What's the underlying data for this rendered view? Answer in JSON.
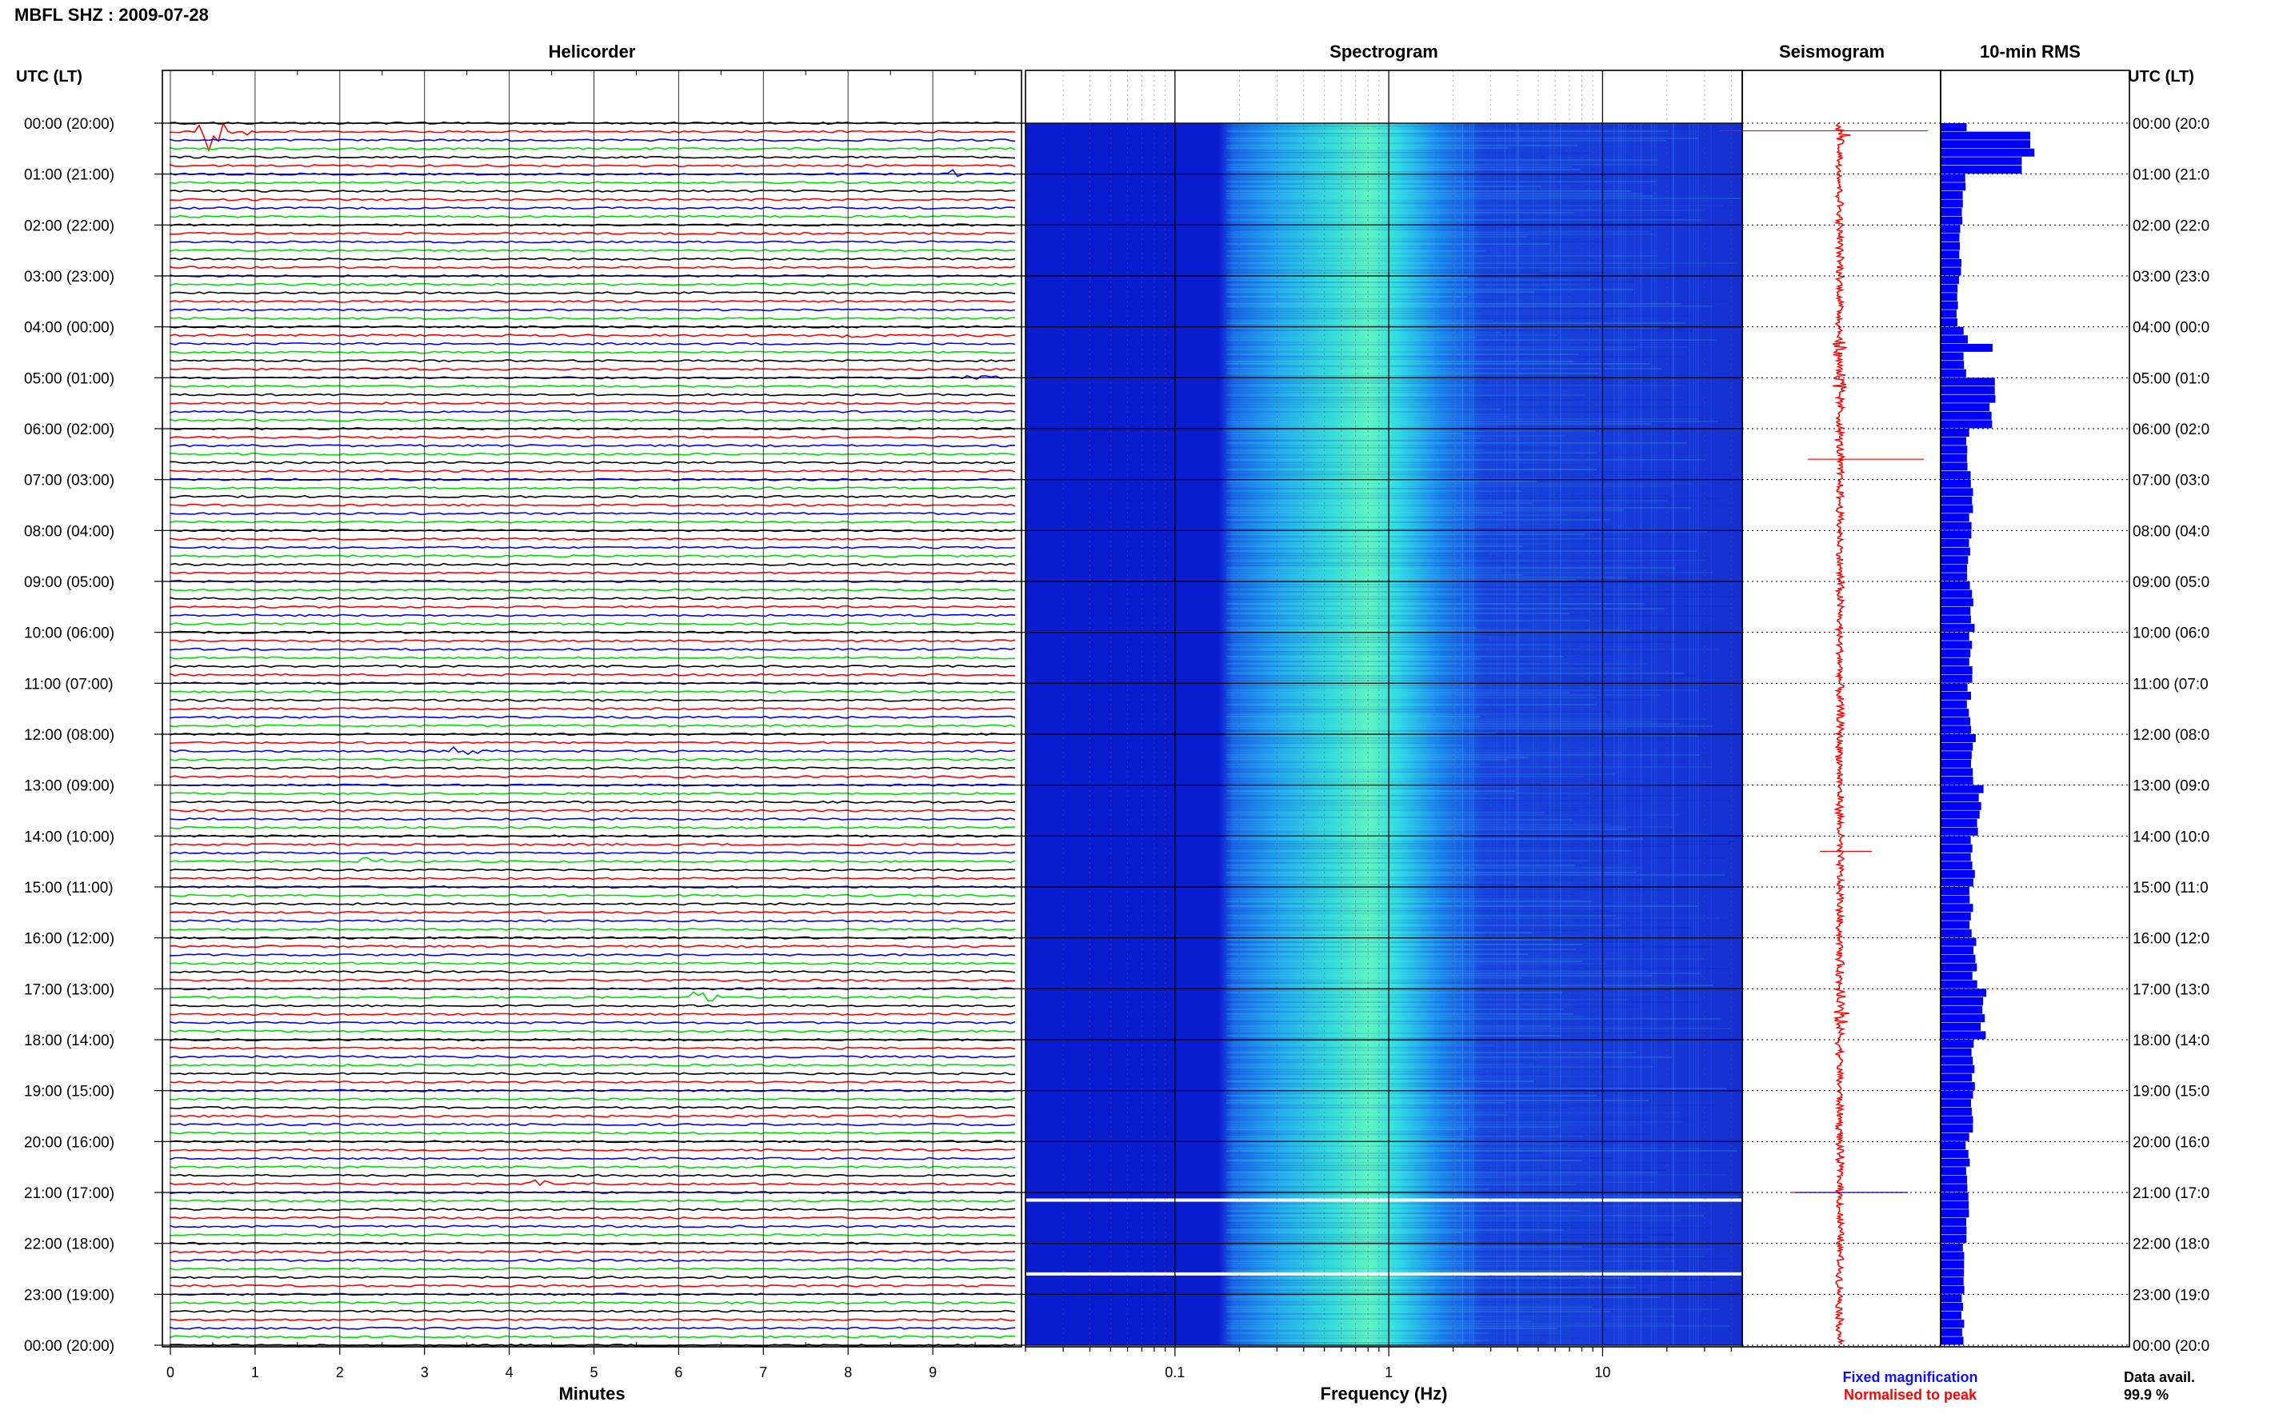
{
  "header": {
    "title": "MBFL SHZ : 2009-07-28"
  },
  "panels": {
    "helicorder": "Helicorder",
    "spectrogram": "Spectrogram",
    "seismogram": "Seismogram",
    "rms": "10-min RMS"
  },
  "axes": {
    "left_label": "UTC (LT)",
    "right_label": "UTC (LT)",
    "minutes_label": "Minutes",
    "frequency_label": "Frequency (Hz)"
  },
  "time_labels": [
    "00:00 (20:00)",
    "01:00 (21:00)",
    "02:00 (22:00)",
    "03:00 (23:00)",
    "04:00 (00:00)",
    "05:00 (01:00)",
    "06:00 (02:00)",
    "07:00 (03:00)",
    "08:00 (04:00)",
    "09:00 (05:00)",
    "10:00 (06:00)",
    "11:00 (07:00)",
    "12:00 (08:00)",
    "13:00 (09:00)",
    "14:00 (10:00)",
    "15:00 (11:00)",
    "16:00 (12:00)",
    "17:00 (13:00)",
    "18:00 (14:00)",
    "19:00 (15:00)",
    "20:00 (16:00)",
    "21:00 (17:00)",
    "22:00 (18:00)",
    "23:00 (19:00)",
    "00:00 (20:00)"
  ],
  "right_time_labels": [
    "00:00 (20:0",
    "01:00 (21:0",
    "02:00 (22:0",
    "03:00 (23:0",
    "04:00 (00:0",
    "05:00 (01:0",
    "06:00 (02:0",
    "07:00 (03:0",
    "08:00 (04:0",
    "09:00 (05:0",
    "10:00 (06:0",
    "11:00 (07:0",
    "12:00 (08:0",
    "13:00 (09:0",
    "14:00 (10:0",
    "15:00 (11:0",
    "16:00 (12:0",
    "17:00 (13:0",
    "18:00 (14:0",
    "19:00 (15:0",
    "20:00 (16:0",
    "21:00 (17:0",
    "22:00 (18:0",
    "23:00 (19:0",
    "00:00 (20:0"
  ],
  "legend": {
    "fixed": "Fixed magnification",
    "normalised": "Normalised to peak",
    "fixed_color": "#1010ff",
    "normalised_color": "#ff0000"
  },
  "data_avail": {
    "label": "Data avail.",
    "value": "99.9 %"
  },
  "colors": {
    "trace_cycle": [
      "#000000",
      "#ff0000",
      "#0000ff",
      "#00dd00"
    ],
    "spectrogram_low": "#0a1fd8",
    "spectrogram_high": "#38ffc8",
    "seismogram": "#ff0000",
    "rms_bar": "#0000ff"
  },
  "chart_data": {
    "type": "heatmap",
    "minutes_ticks": [
      "0",
      "1",
      "2",
      "3",
      "4",
      "5",
      "6",
      "7",
      "8",
      "9"
    ],
    "frequency_ticks": [
      "0.1",
      "1",
      "10"
    ],
    "frequency_range": [
      0.02,
      45
    ],
    "helicorder_lines_per_hour": 6,
    "hours": 24,
    "gaps_hours": [
      21.15,
      22.6
    ],
    "events_helicorder": [
      {
        "minute": 0.4,
        "hour": 0.1,
        "amp": 1.0
      },
      {
        "minute": 9.3,
        "hour": 1.0,
        "amp": 0.2
      },
      {
        "minute": 8.0,
        "hour": 4.2,
        "amp": 0.15
      },
      {
        "minute": 9.3,
        "hour": 5.0,
        "amp": 0.25
      },
      {
        "minute": 6.2,
        "hour": 17.15,
        "amp": 0.35
      },
      {
        "minute": 4.3,
        "hour": 20.85,
        "amp": 0.25
      },
      {
        "minute": 3.4,
        "hour": 12.4,
        "amp": 0.2
      },
      {
        "minute": 2.3,
        "hour": 14.45,
        "amp": 0.18
      }
    ],
    "rms_hourly": [
      1.9,
      0.5,
      0.42,
      0.38,
      0.55,
      1.1,
      0.6,
      0.65,
      0.62,
      0.68,
      0.66,
      0.62,
      0.72,
      0.86,
      0.7,
      0.66,
      0.74,
      0.92,
      0.72,
      0.66,
      0.6,
      0.58,
      0.52,
      0.5
    ],
    "rms_peaks": [
      {
        "hour": 0.25,
        "value": 1.9
      },
      {
        "hour": 4.4,
        "value": 1.1
      },
      {
        "hour": 5.05,
        "value": 1.15
      },
      {
        "hour": 17.2,
        "value": 0.9
      },
      {
        "hour": 17.6,
        "value": 0.85
      }
    ]
  }
}
